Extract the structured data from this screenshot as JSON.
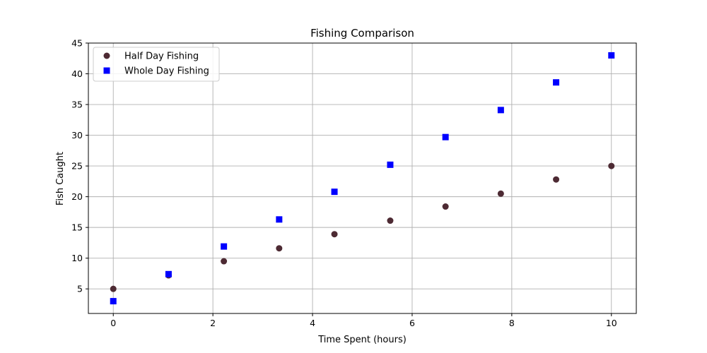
{
  "chart_data": {
    "type": "scatter",
    "title": "Fishing Comparison",
    "xlabel": "Time Spent (hours)",
    "ylabel": "Fish Caught",
    "xlim": [
      -0.5,
      10.5
    ],
    "ylim": [
      1,
      45
    ],
    "xticks": [
      0,
      2,
      4,
      6,
      8,
      10
    ],
    "yticks": [
      5,
      10,
      15,
      20,
      25,
      30,
      35,
      40,
      45
    ],
    "grid": true,
    "legend_position": "top-left",
    "x": [
      0,
      1.11,
      2.22,
      3.33,
      4.44,
      5.56,
      6.67,
      7.78,
      8.89,
      10
    ],
    "series": [
      {
        "name": "Half Day Fishing",
        "marker": "circle",
        "color": "#4d2a33",
        "values": [
          5.0,
          7.2,
          9.5,
          11.6,
          13.9,
          16.1,
          18.4,
          20.5,
          22.8,
          25.0
        ]
      },
      {
        "name": "Whole Day Fishing",
        "marker": "square",
        "color": "#0000ff",
        "values": [
          3.0,
          7.4,
          11.9,
          16.3,
          20.8,
          25.2,
          29.7,
          34.1,
          38.6,
          43.0
        ]
      }
    ]
  }
}
